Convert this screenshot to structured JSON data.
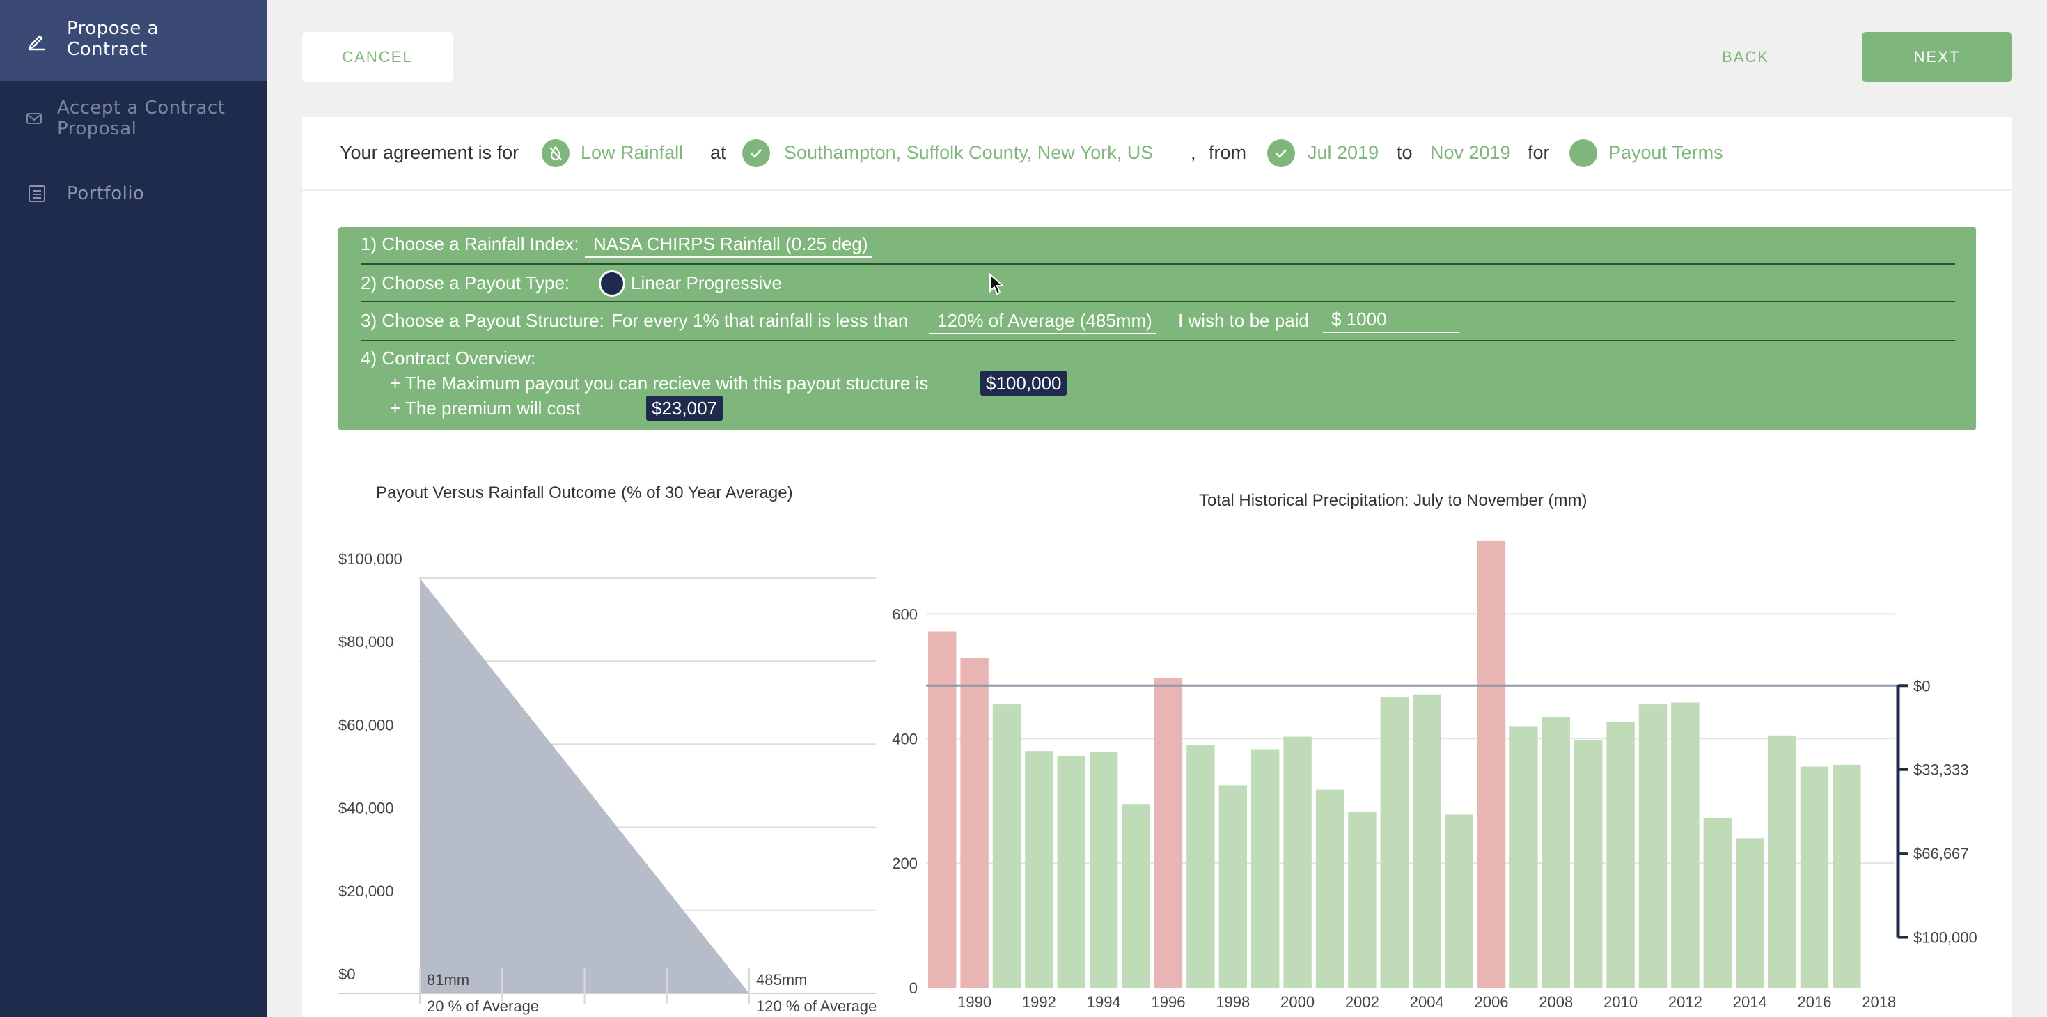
{
  "sidebar": {
    "items": [
      {
        "label": "Propose a\nContract",
        "icon": "pencil-icon"
      },
      {
        "label": "Accept a Contract\nProposal",
        "icon": "envelope-icon"
      },
      {
        "label": "Portfolio",
        "icon": "list-document-icon"
      }
    ]
  },
  "toolbar": {
    "cancel_label": "CANCEL",
    "back_label": "BACK",
    "next_label": "NEXT"
  },
  "summary": {
    "intro": "Your agreement is for",
    "event": "Low Rainfall",
    "at": "at",
    "location": "Southampton, Suffolk County, New York, US",
    "comma": ",",
    "from": "from",
    "start": "Jul 2019",
    "to": "to",
    "end": "Nov 2019",
    "for": "for",
    "terms": "Payout Terms"
  },
  "form": {
    "index_label": "1) Choose a Rainfall Index:",
    "index_value": "NASA CHIRPS Rainfall (0.25 deg)",
    "payout_type_label": "2) Choose a Payout Type:",
    "payout_type_value": "Linear Progressive",
    "structure_label": "3) Choose a Payout Structure:",
    "structure_text": "For every 1% that rainfall is less than",
    "threshold_value": "120% of Average (485mm)",
    "paid_text": "I wish to be paid",
    "amount_value": "$ 1000",
    "overview_label": "4) Contract Overview:",
    "max_payout_text": "+ The Maximum payout you can recieve with this payout stucture is",
    "max_payout_value": "$100,000",
    "premium_text": "+ The premium will cost",
    "premium_value": "$23,007"
  },
  "chart_data": [
    {
      "type": "area",
      "title": "Payout Versus Rainfall Outcome (% of 30 Year Average)",
      "ylabel": "",
      "y_ticks": [
        "$100,000",
        "$80,000",
        "$60,000",
        "$40,000",
        "$20,000",
        "$0"
      ],
      "ylim": [
        0,
        100000
      ],
      "x_mm_labels": [
        "81mm",
        "485mm"
      ],
      "x_pct_labels": [
        "20 % of Average",
        "120 % of Average"
      ],
      "x": [
        20,
        120
      ],
      "values": [
        100000,
        0
      ],
      "color": "#b2b9c6",
      "grid": true
    },
    {
      "type": "bar",
      "title": "Total Historical Precipitation: July to November (mm)",
      "ylim": [
        0,
        700
      ],
      "y_ticks": [
        0,
        200,
        400,
        600
      ],
      "x_tick_labels": [
        "1990",
        "1992",
        "1994",
        "1996",
        "1998",
        "2000",
        "2002",
        "2004",
        "2006",
        "2008",
        "2010",
        "2012",
        "2014",
        "2016",
        "2018"
      ],
      "categories": [
        1989,
        1990,
        1991,
        1992,
        1993,
        1994,
        1995,
        1996,
        1997,
        1998,
        1999,
        2000,
        2001,
        2002,
        2003,
        2004,
        2005,
        2006,
        2007,
        2008,
        2009,
        2010,
        2011,
        2012,
        2013,
        2014,
        2015,
        2016,
        2017,
        2018
      ],
      "values": [
        572,
        530,
        455,
        380,
        372,
        378,
        295,
        497,
        390,
        325,
        383,
        403,
        318,
        283,
        467,
        470,
        278,
        718,
        420,
        435,
        398,
        427,
        455,
        458,
        272,
        240,
        405,
        355,
        358,
        0
      ],
      "highlight_color": "#e8b4b4",
      "normal_color": "#bfdbb8",
      "threshold_mm": 485,
      "payout_axis_ticks": [
        "$0",
        "$33,333",
        "$66,667",
        "$100,000"
      ],
      "payout_axis_range_mm": [
        485,
        81
      ]
    }
  ]
}
